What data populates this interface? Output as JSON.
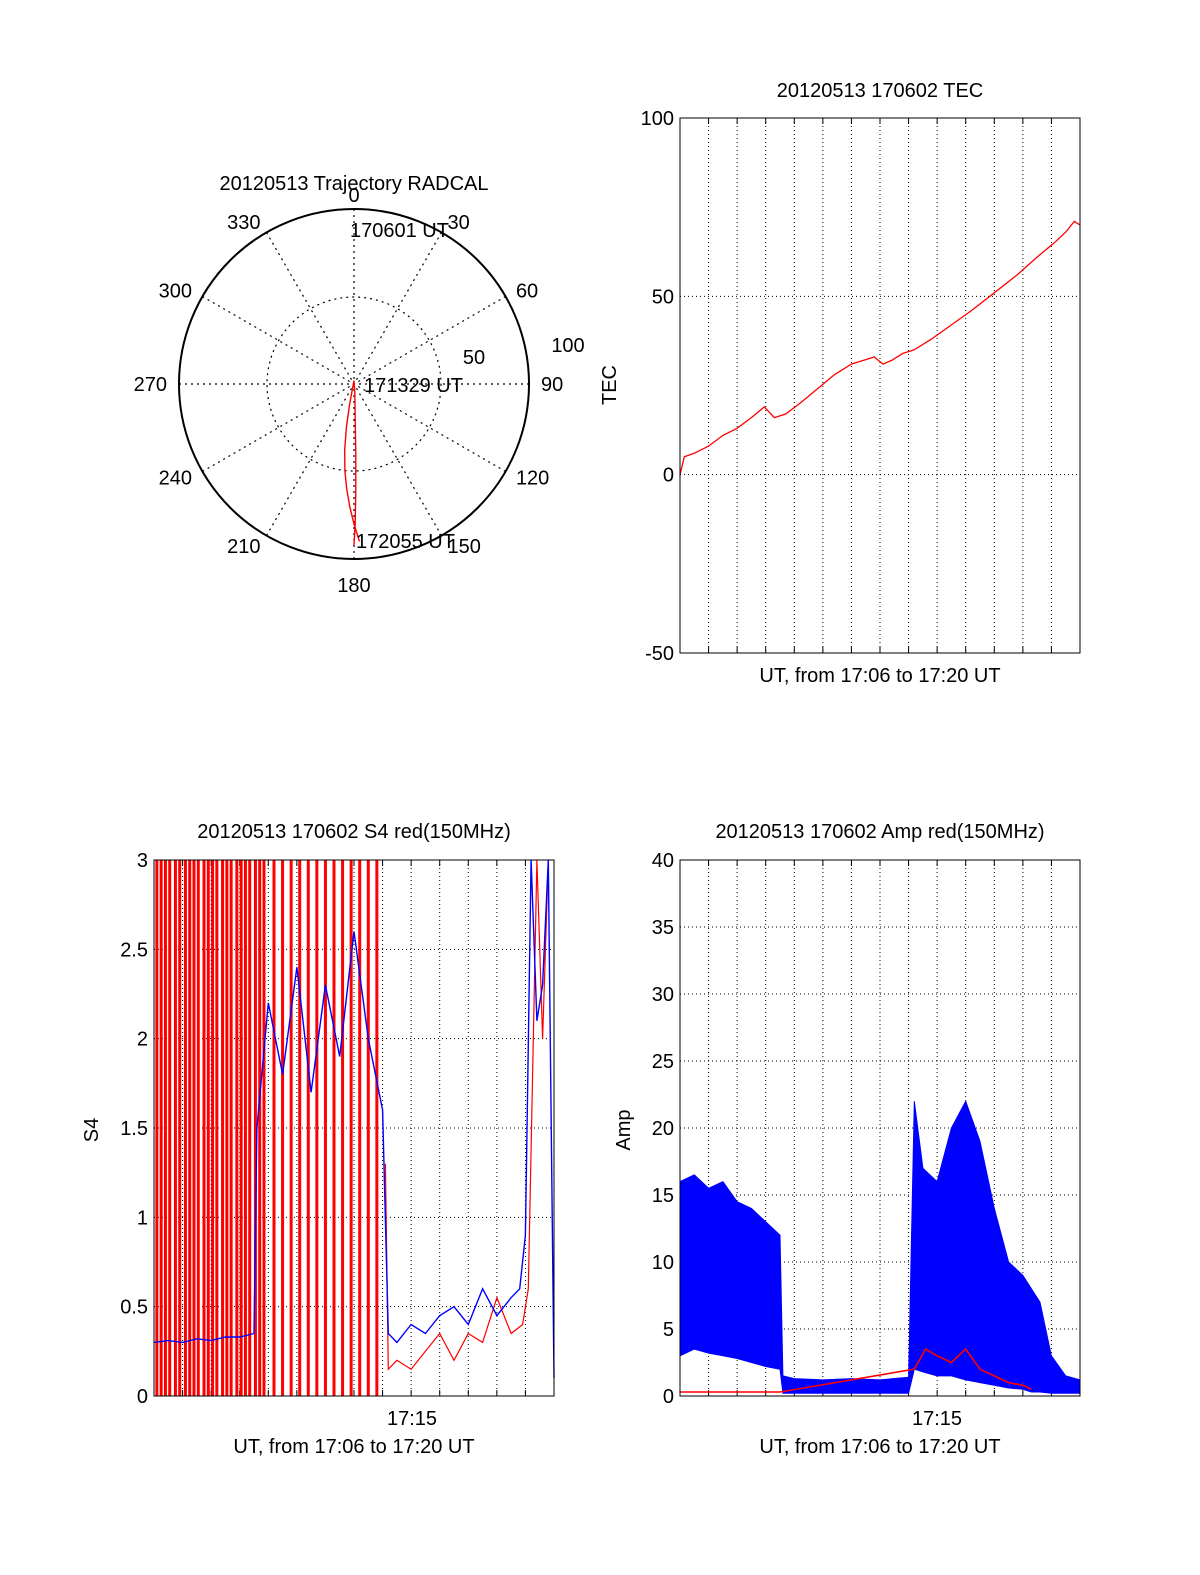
{
  "colors": {
    "red": "#ff0000",
    "blue": "#0000ff",
    "axis": "#000000",
    "grid": "#000000"
  },
  "chart_data": [
    {
      "id": "trajectory",
      "type": "polar",
      "title": "20120513 Trajectory RADCAL",
      "angle_labels": [
        "0",
        "30",
        "60",
        "90",
        "120",
        "150",
        "180",
        "210",
        "240",
        "270",
        "300",
        "330"
      ],
      "radial_labels": [
        "50",
        "100"
      ],
      "rlim": [
        0,
        100
      ],
      "grid": true,
      "annotations": [
        "170601 UT",
        "171329 UT",
        "172055 UT"
      ],
      "series": [
        {
          "color": "#ff0000",
          "points": [
            [
              178,
              90
            ],
            [
              180,
              80
            ],
            [
              182,
              70
            ],
            [
              184,
              60
            ],
            [
              186,
              50
            ],
            [
              188,
              38
            ],
            [
              190,
              25
            ],
            [
              192,
              12
            ],
            [
              0,
              2
            ],
            [
              175,
              5
            ],
            [
              178,
              20
            ],
            [
              178.5,
              40
            ],
            [
              179,
              60
            ],
            [
              179.5,
              80
            ],
            [
              180,
              92
            ]
          ]
        }
      ]
    },
    {
      "id": "tec",
      "type": "line",
      "title": "20120513 170602 TEC",
      "xlabel": "UT, from 17:06 to 17:20 UT",
      "ylabel": "TEC",
      "xlim": [
        0,
        14
      ],
      "ylim": [
        -50,
        100
      ],
      "yticks": [
        "-50",
        "0",
        "50",
        "100"
      ],
      "grid": true,
      "series": [
        {
          "color": "#ff0000",
          "x": [
            0,
            0.15,
            0.5,
            1.0,
            1.5,
            2.0,
            2.5,
            2.95,
            3.3,
            3.7,
            4.2,
            4.8,
            5.4,
            6.0,
            6.4,
            6.8,
            7.1,
            7.4,
            7.8,
            8.2,
            8.8,
            9.5,
            10.2,
            11.0,
            11.8,
            12.5,
            13.1,
            13.5,
            13.8,
            14.0
          ],
          "y": [
            0,
            5,
            6,
            8,
            11,
            13,
            16,
            19,
            16,
            17,
            20,
            24,
            28,
            31,
            32,
            33,
            31,
            32,
            34,
            35,
            38,
            42,
            46,
            51,
            56,
            61,
            65,
            68,
            71,
            70
          ]
        }
      ]
    },
    {
      "id": "s4",
      "type": "line",
      "title": "20120513 170602 S4 red(150MHz)",
      "xlabel": "UT, from 17:06 to 17:20 UT",
      "ylabel": "S4",
      "xlim": [
        0,
        14
      ],
      "ylim": [
        0,
        3
      ],
      "xticks": [
        "17:15"
      ],
      "xtick_values": [
        9
      ],
      "yticks": [
        "0",
        "0.5",
        "1",
        "1.5",
        "2",
        "2.5",
        "3"
      ],
      "grid": true,
      "series": [
        {
          "color": "#ff0000",
          "style": "spikes",
          "note": "saturated spikes 0–3",
          "x": [
            0.1,
            0.25,
            0.4,
            0.55,
            0.75,
            0.9,
            1.1,
            1.25,
            1.4,
            1.55,
            1.75,
            1.9,
            2.05,
            2.2,
            2.4,
            2.55,
            2.7,
            2.9,
            3.05,
            3.2,
            3.35,
            3.55,
            3.7,
            3.85,
            4.2,
            4.5,
            4.8,
            5.1,
            5.4,
            5.7,
            6.0,
            6.3,
            6.6,
            6.9,
            7.2,
            7.5,
            7.8
          ],
          "y": [
            3,
            3,
            3,
            3,
            3,
            3,
            3,
            3,
            3,
            3,
            3,
            3,
            3,
            3,
            3,
            3,
            3,
            3,
            3,
            3,
            3,
            3,
            3,
            3,
            3,
            3,
            3,
            3,
            3,
            3,
            3,
            3,
            3,
            3,
            3,
            3,
            3
          ]
        },
        {
          "color": "#ff0000",
          "style": "line",
          "x": [
            8.1,
            8.2,
            8.5,
            9.0,
            9.5,
            10.0,
            10.5,
            11.0,
            11.5,
            12.0,
            12.5,
            12.9,
            13.1,
            13.4,
            13.6,
            13.8
          ],
          "y": [
            1.3,
            0.15,
            0.2,
            0.15,
            0.25,
            0.35,
            0.2,
            0.35,
            0.3,
            0.55,
            0.35,
            0.4,
            0.6,
            3.0,
            2.0,
            3.0
          ]
        },
        {
          "color": "#0000ff",
          "style": "line",
          "x": [
            0,
            0.5,
            1.0,
            1.5,
            2.0,
            2.5,
            3.0,
            3.5,
            3.6,
            4.0,
            4.5,
            5.0,
            5.5,
            6.0,
            6.5,
            7.0,
            7.5,
            8.0,
            8.2,
            8.5,
            9.0,
            9.5,
            10.0,
            10.5,
            11.0,
            11.5,
            12.0,
            12.5,
            12.8,
            13.0,
            13.2,
            13.4,
            13.6,
            13.8,
            14.0
          ],
          "y": [
            0.3,
            0.31,
            0.3,
            0.32,
            0.31,
            0.33,
            0.33,
            0.35,
            1.5,
            2.2,
            1.8,
            2.4,
            1.7,
            2.3,
            1.9,
            2.6,
            2.0,
            1.6,
            0.35,
            0.3,
            0.4,
            0.35,
            0.45,
            0.5,
            0.4,
            0.6,
            0.45,
            0.55,
            0.6,
            0.9,
            3.0,
            2.1,
            2.3,
            3.0,
            0.1
          ]
        }
      ]
    },
    {
      "id": "amp",
      "type": "line",
      "title": "20120513 170602 Amp red(150MHz)",
      "xlabel": "UT, from 17:06 to 17:20 UT",
      "ylabel": "Amp",
      "xlim": [
        0,
        14
      ],
      "ylim": [
        0,
        40
      ],
      "xticks": [
        "17:15"
      ],
      "xtick_values": [
        9
      ],
      "yticks": [
        "0",
        "5",
        "10",
        "15",
        "20",
        "25",
        "30",
        "35",
        "40"
      ],
      "grid": true,
      "series": [
        {
          "color": "#0000ff",
          "style": "band",
          "x": [
            0,
            0.5,
            1.0,
            1.5,
            2.0,
            2.5,
            3.0,
            3.5,
            3.6,
            4.0,
            5.0,
            6.0,
            7.0,
            8.0,
            8.2,
            8.5,
            9.0,
            9.5,
            10.0,
            10.5,
            11.0,
            11.5,
            12.0,
            12.3,
            12.6,
            13.0,
            13.5,
            14.0
          ],
          "hi": [
            16,
            16.5,
            15.5,
            16,
            14.5,
            14,
            13,
            12,
            1.5,
            1.3,
            1.2,
            1.3,
            1.2,
            1.4,
            22,
            17,
            16,
            20,
            22,
            19,
            14,
            10,
            9,
            8,
            7,
            3,
            1.5,
            1.2
          ],
          "lo": [
            3,
            3.5,
            3.2,
            3.0,
            2.8,
            2.5,
            2.2,
            2.0,
            0.2,
            0.2,
            0.2,
            0.2,
            0.2,
            0.2,
            2.0,
            1.8,
            1.5,
            1.5,
            1.2,
            1.0,
            0.8,
            0.6,
            0.5,
            0.3,
            0.3,
            0.2,
            0.2,
            0.2
          ]
        },
        {
          "color": "#ff0000",
          "style": "line",
          "x": [
            0,
            1,
            2,
            3,
            3.5,
            8.2,
            8.6,
            9.0,
            9.5,
            10.0,
            10.5,
            11.0,
            11.5,
            12.0,
            12.3
          ],
          "y": [
            0.3,
            0.3,
            0.3,
            0.3,
            0.3,
            2.0,
            3.5,
            3.0,
            2.5,
            3.5,
            2.0,
            1.5,
            1.0,
            0.8,
            0.5
          ]
        }
      ]
    }
  ]
}
